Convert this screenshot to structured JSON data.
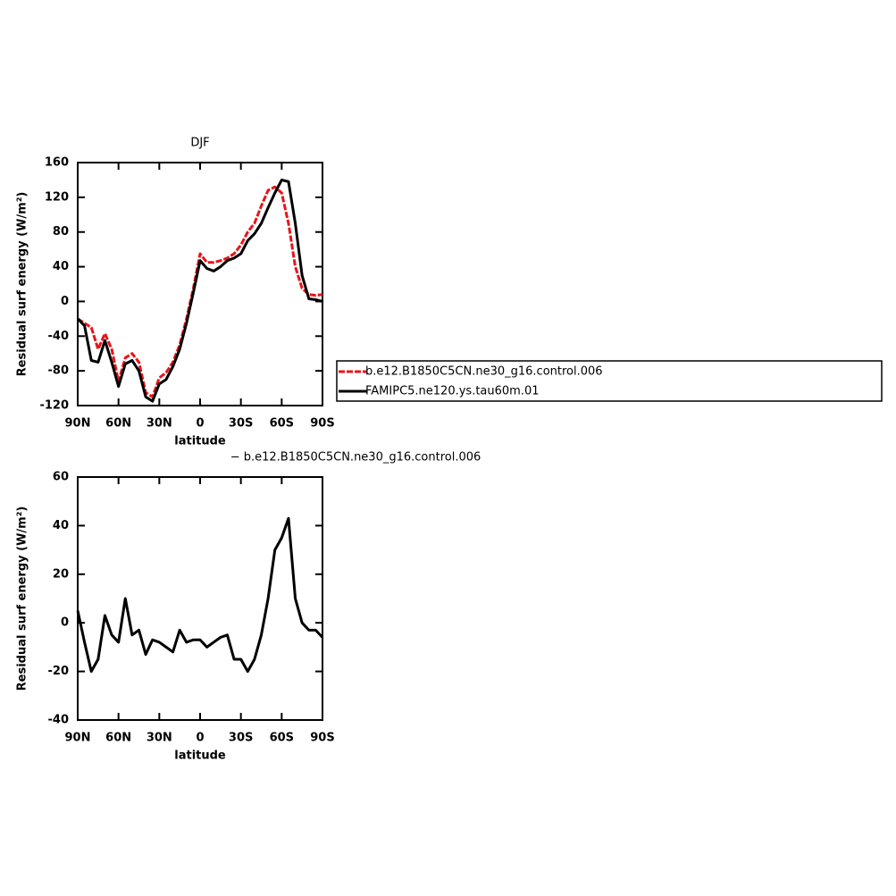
{
  "chart_data": [
    {
      "type": "line",
      "title": "DJF",
      "x_label": "latitude",
      "y_label": "Residual surf energy (W/m²)",
      "x": [
        90,
        85,
        80,
        75,
        70,
        65,
        60,
        55,
        50,
        45,
        40,
        35,
        30,
        25,
        20,
        15,
        10,
        5,
        0,
        -5,
        -10,
        -15,
        -20,
        -25,
        -30,
        -35,
        -40,
        -45,
        -50,
        -55,
        -60,
        -65,
        -70,
        -75,
        -80,
        -85,
        -90
      ],
      "series": [
        {
          "name": "b.e12.B1850C5CN.ne30_g16.control.006",
          "color": "#e8141a",
          "dashed": true,
          "values": [
            -20,
            -25,
            -30,
            -55,
            -37,
            -55,
            -92,
            -65,
            -60,
            -70,
            -105,
            -110,
            -88,
            -82,
            -70,
            -50,
            -20,
            15,
            55,
            45,
            45,
            47,
            50,
            55,
            65,
            80,
            90,
            110,
            128,
            132,
            125,
            90,
            40,
            15,
            8,
            7,
            8
          ]
        },
        {
          "name": "FAMIPC5.ne120.ys.tau60m.01",
          "color": "#000000",
          "dashed": false,
          "values": [
            -20,
            -28,
            -68,
            -70,
            -45,
            -70,
            -98,
            -72,
            -68,
            -80,
            -110,
            -115,
            -95,
            -90,
            -75,
            -55,
            -25,
            10,
            47,
            38,
            35,
            40,
            47,
            50,
            55,
            70,
            78,
            90,
            108,
            125,
            140,
            138,
            90,
            30,
            3,
            2,
            0
          ]
        }
      ],
      "xlim": [
        90,
        -90
      ],
      "xticks": [
        {
          "value": 90,
          "label": "90N"
        },
        {
          "value": 60,
          "label": "60N"
        },
        {
          "value": 30,
          "label": "30N"
        },
        0,
        {
          "value": -30,
          "label": "30S"
        },
        {
          "value": -60,
          "label": "60S"
        },
        {
          "value": -90,
          "label": "90S"
        }
      ],
      "ylim": [
        -120,
        160
      ],
      "yticks": [
        -120,
        -80,
        -40,
        0,
        40,
        80,
        120,
        160
      ]
    },
    {
      "type": "line",
      "title": "− b.e12.B1850C5CN.ne30_g16.control.006",
      "x_label": "latitude",
      "y_label": "Residual surf energy (W/m²)",
      "x": [
        90,
        85,
        80,
        75,
        70,
        65,
        60,
        55,
        50,
        45,
        40,
        35,
        30,
        25,
        20,
        15,
        10,
        5,
        0,
        -5,
        -10,
        -15,
        -20,
        -25,
        -30,
        -35,
        -40,
        -45,
        -50,
        -55,
        -60,
        -65,
        -70,
        -75,
        -80,
        -85,
        -90
      ],
      "series": [
        {
          "color": "#000000",
          "values": [
            5,
            -8,
            -20,
            -15,
            3,
            -5,
            -8,
            10,
            -5,
            -3,
            -13,
            -7,
            -8,
            -10,
            -12,
            -3,
            -8,
            -7,
            -7,
            -10,
            -8,
            -6,
            -5,
            -15,
            -15,
            -20,
            -15,
            -5,
            10,
            30,
            35,
            43,
            10,
            0,
            -3,
            -3,
            -6
          ]
        }
      ],
      "xlim": [
        90,
        -90
      ],
      "xticks": [
        {
          "value": 90,
          "label": "90N"
        },
        {
          "value": 60,
          "label": "60N"
        },
        {
          "value": 30,
          "label": "30N"
        },
        0,
        {
          "value": -30,
          "label": "30S"
        },
        {
          "value": -60,
          "label": "60S"
        },
        {
          "value": -90,
          "label": "90S"
        }
      ],
      "ylim": [
        -40,
        60
      ],
      "yticks": [
        -40,
        -20,
        0,
        20,
        40,
        60
      ]
    }
  ]
}
